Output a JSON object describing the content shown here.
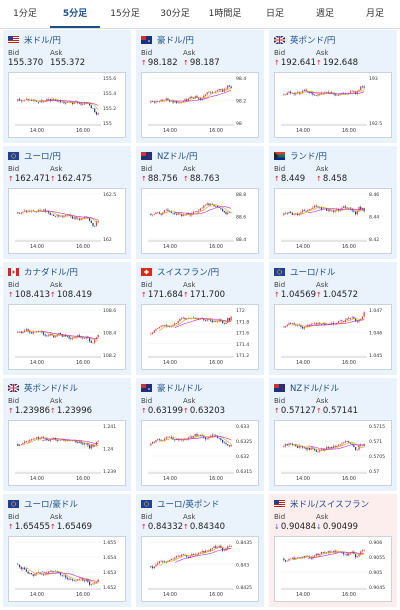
{
  "tabs": [
    {
      "label": "1分足"
    },
    {
      "label": "5分足"
    },
    {
      "label": "15分足"
    },
    {
      "label": "30分足"
    },
    {
      "label": "1時間足"
    },
    {
      "label": "日足"
    },
    {
      "label": "週足"
    },
    {
      "label": "月足"
    }
  ],
  "active_tab": "5分足",
  "bid_label": "Bid",
  "ask_label": "Ask",
  "colors": {
    "up": "#e53935",
    "down": "#1e3a8a",
    "ma": "#c026d3",
    "accent": "#1a4f8a",
    "card": "#eaf2fb",
    "card_alert": "#fdeeee"
  },
  "cards": [
    {
      "pair": "米ドル/円",
      "flag": "us",
      "bid": "155.370",
      "ask": "155.372",
      "dir": "none",
      "chart": {
        "x_ticks": [
          "14:00",
          "16:00"
        ],
        "y_ticks": [
          "155.6",
          "155.4",
          "155.2",
          "155"
        ]
      }
    },
    {
      "pair": "豪ドル/円",
      "flag": "au",
      "bid": "98.182",
      "ask": "98.187",
      "dir": "up",
      "chart": {
        "x_ticks": [
          "14:00",
          "16:00"
        ],
        "y_ticks": [
          "98.4",
          "98.2",
          "98"
        ]
      }
    },
    {
      "pair": "英ポンド/円",
      "flag": "gb",
      "bid": "192.641",
      "ask": "192.648",
      "dir": "up",
      "chart": {
        "x_ticks": [
          "14:00",
          "16:00"
        ],
        "y_ticks": [
          "193",
          "192.5"
        ]
      }
    },
    {
      "pair": "ユーロ/円",
      "flag": "eu",
      "bid": "162.471",
      "ask": "162.475",
      "dir": "up",
      "chart": {
        "x_ticks": [
          "14:00",
          "16:00"
        ],
        "y_ticks": [
          "162.5",
          "162"
        ]
      }
    },
    {
      "pair": "NZドル/円",
      "flag": "nz",
      "bid": "88.756",
      "ask": "88.763",
      "dir": "up",
      "chart": {
        "x_ticks": [
          "14:00",
          "16:00"
        ],
        "y_ticks": [
          "88.8",
          "88.6",
          "88.4"
        ]
      }
    },
    {
      "pair": "ランド/円",
      "flag": "za",
      "bid": "8.449",
      "ask": "8.458",
      "dir": "up",
      "chart": {
        "x_ticks": [
          "14:00",
          "16:00"
        ],
        "y_ticks": [
          "8.46",
          "8.44",
          "8.42"
        ]
      }
    },
    {
      "pair": "カナダドル/円",
      "flag": "ca",
      "bid": "108.413",
      "ask": "108.419",
      "dir": "up",
      "chart": {
        "x_ticks": [
          "14:00",
          "16:00"
        ],
        "y_ticks": [
          "108.6",
          "108.4",
          "108.2"
        ]
      }
    },
    {
      "pair": "スイスフラン/円",
      "flag": "ch",
      "bid": "171.684",
      "ask": "171.700",
      "dir": "up",
      "chart": {
        "x_ticks": [
          "14:00",
          "16:00"
        ],
        "y_ticks": [
          "172",
          "171.8",
          "171.6",
          "171.4",
          "171.2"
        ]
      }
    },
    {
      "pair": "ユーロ/ドル",
      "flag": "eu",
      "bid": "1.04569",
      "ask": "1.04572",
      "dir": "up",
      "chart": {
        "x_ticks": [
          "14:00",
          "16:00"
        ],
        "y_ticks": [
          "1.047",
          "1.046",
          "1.045"
        ]
      }
    },
    {
      "pair": "英ポンド/ドル",
      "flag": "gb",
      "bid": "1.23986",
      "ask": "1.23996",
      "dir": "up",
      "chart": {
        "x_ticks": [
          "14:00",
          "16:00"
        ],
        "y_ticks": [
          "1.241",
          "1.24",
          "1.239"
        ]
      }
    },
    {
      "pair": "豪ドル/ドル",
      "flag": "au",
      "bid": "0.63199",
      "ask": "0.63203",
      "dir": "up",
      "chart": {
        "x_ticks": [
          "14:00",
          "16:00"
        ],
        "y_ticks": [
          "0.633",
          "0.6325",
          "0.632",
          "0.6315"
        ]
      }
    },
    {
      "pair": "NZドル/ドル",
      "flag": "nz",
      "bid": "0.57127",
      "ask": "0.57141",
      "dir": "up",
      "chart": {
        "x_ticks": [
          "14:00",
          "16:00"
        ],
        "y_ticks": [
          "0.5715",
          "0.571",
          "0.5705",
          "0.57"
        ]
      }
    },
    {
      "pair": "ユーロ/豪ドル",
      "flag": "eu",
      "bid": "1.65455",
      "ask": "1.65469",
      "dir": "up",
      "chart": {
        "x_ticks": [
          "14:00",
          "16:00"
        ],
        "y_ticks": [
          "1.655",
          "1.654",
          "1.653",
          "1.652"
        ]
      }
    },
    {
      "pair": "ユーロ/英ポンド",
      "flag": "eu",
      "bid": "0.84332",
      "ask": "0.84340",
      "dir": "up",
      "chart": {
        "x_ticks": [
          "14:00",
          "16:00"
        ],
        "y_ticks": [
          "0.8435",
          "0.843",
          "0.8425"
        ]
      }
    },
    {
      "pair": "米ドル/スイスフラン",
      "flag": "us",
      "bid": "0.90484",
      "ask": "0.90499",
      "dir": "down",
      "alert": true,
      "chart": {
        "x_ticks": [
          "14:00",
          "16:00"
        ],
        "y_ticks": [
          "0.906",
          "0.9055",
          "0.905",
          "0.9045"
        ]
      }
    }
  ]
}
